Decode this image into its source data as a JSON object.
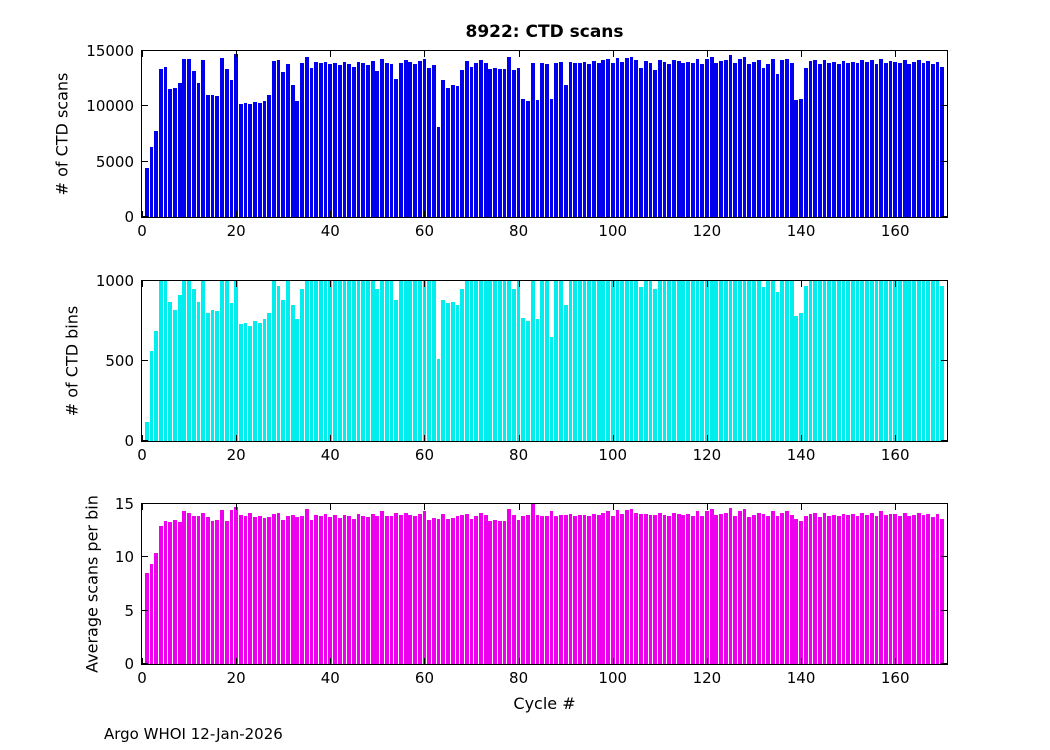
{
  "footer": "Argo WHOI 12-Jan-2026",
  "colors": {
    "scans": "#0000ee",
    "bins": "#00eeee",
    "avg": "#ee00ee"
  },
  "chart_data": [
    {
      "type": "bar",
      "title": "8922: CTD scans",
      "ylabel": "# of CTD scans",
      "xlabel": "",
      "color": "#0000ee",
      "ylim": [
        0,
        15000
      ],
      "yticks": [
        0,
        5000,
        10000,
        15000
      ],
      "xlim": [
        0,
        171
      ],
      "xticks": [
        0,
        20,
        40,
        60,
        80,
        100,
        120,
        140,
        160
      ],
      "x_start": 1,
      "values": [
        4400,
        6300,
        7800,
        13400,
        13600,
        11600,
        11700,
        12100,
        14300,
        14250,
        13200,
        12100,
        14200,
        11050,
        11000,
        10950,
        14400,
        13350,
        12400,
        14700,
        10250,
        10300,
        10200,
        10350,
        10300,
        10450,
        11000,
        14100,
        14150,
        13100,
        13850,
        11950,
        10500,
        13900,
        14500,
        13500,
        14000,
        13900,
        14050,
        13800,
        13950,
        13700,
        14000,
        13850,
        13600,
        14050,
        13900,
        13750,
        14100,
        13200,
        14300,
        13900,
        13850,
        12500,
        13950,
        14200,
        14000,
        13850,
        14100,
        14250,
        13500,
        13700,
        8100,
        12400,
        11700,
        11900,
        11850,
        13300,
        14100,
        13600,
        13900,
        14200,
        13950,
        13400,
        13500,
        13350,
        13400,
        14500,
        13300,
        13450,
        10700,
        10500,
        13950,
        10600,
        13900,
        13850,
        10700,
        13900,
        14000,
        11900,
        14050,
        13900,
        13950,
        14000,
        13850,
        14100,
        13950,
        14200,
        14300,
        13900,
        14350,
        14050,
        14400,
        14500,
        14200,
        13500,
        14100,
        13950,
        13300,
        14150,
        14000,
        13850,
        14200,
        14100,
        13950,
        14050,
        13900,
        14300,
        13850,
        14250,
        14500,
        13950,
        14100,
        14200,
        14600,
        13900,
        14300,
        14450,
        13800,
        14000,
        14200,
        13500,
        13850,
        14300,
        12900,
        14200,
        14250,
        13950,
        10600,
        10700,
        13500,
        14100,
        14150,
        13800,
        14200,
        13900,
        14000,
        13850,
        14100,
        13950,
        14050,
        13900,
        14150,
        14000,
        14200,
        13850,
        14300,
        13950,
        14100,
        14050,
        13900,
        14200,
        13850,
        14000,
        14150,
        13950,
        14100,
        13800,
        14050,
        13600
      ]
    },
    {
      "type": "bar",
      "title": "",
      "ylabel": "# of CTD bins",
      "xlabel": "",
      "color": "#00eeee",
      "ylim": [
        0,
        1000
      ],
      "yticks": [
        0,
        500,
        1000
      ],
      "xlim": [
        0,
        171
      ],
      "xticks": [
        0,
        20,
        40,
        60,
        80,
        100,
        120,
        140,
        160
      ],
      "x_start": 1,
      "values": [
        120,
        560,
        690,
        1000,
        1000,
        870,
        820,
        910,
        1000,
        1000,
        950,
        870,
        1000,
        800,
        820,
        810,
        1000,
        1000,
        860,
        1000,
        730,
        740,
        720,
        750,
        740,
        760,
        800,
        1000,
        970,
        880,
        1000,
        850,
        760,
        950,
        1000,
        1000,
        1000,
        1000,
        1000,
        1000,
        1000,
        1000,
        1000,
        1000,
        1000,
        1000,
        1000,
        1000,
        1000,
        950,
        1000,
        1000,
        1000,
        880,
        1000,
        1000,
        1000,
        1000,
        1000,
        1000,
        1000,
        1000,
        510,
        880,
        860,
        870,
        850,
        950,
        1000,
        1000,
        1000,
        1000,
        1000,
        1000,
        1000,
        1000,
        1000,
        1000,
        950,
        1000,
        770,
        750,
        1000,
        760,
        1000,
        1000,
        650,
        1000,
        1000,
        850,
        1000,
        1000,
        1000,
        1000,
        1000,
        1000,
        1000,
        1000,
        1000,
        1000,
        1000,
        1000,
        1000,
        1000,
        1000,
        960,
        1000,
        1000,
        950,
        1000,
        1000,
        1000,
        1000,
        1000,
        1000,
        1000,
        1000,
        1000,
        1000,
        1000,
        1000,
        1000,
        1000,
        1000,
        1000,
        1000,
        1000,
        1000,
        1000,
        1000,
        1000,
        960,
        1000,
        1000,
        930,
        1000,
        1000,
        1000,
        780,
        800,
        970,
        1000,
        1000,
        1000,
        1000,
        1000,
        1000,
        1000,
        1000,
        1000,
        1000,
        1000,
        1000,
        1000,
        1000,
        1000,
        1000,
        1000,
        1000,
        1000,
        1000,
        1000,
        1000,
        1000,
        1000,
        1000,
        1000,
        1000,
        1000,
        970
      ]
    },
    {
      "type": "bar",
      "title": "",
      "ylabel": "Average scans per bin",
      "xlabel": "Cycle #",
      "color": "#ee00ee",
      "ylim": [
        0,
        15
      ],
      "yticks": [
        0,
        5,
        10,
        15
      ],
      "xlim": [
        0,
        171
      ],
      "xticks": [
        0,
        20,
        40,
        60,
        80,
        100,
        120,
        140,
        160
      ],
      "x_start": 1,
      "values": [
        8.5,
        9.4,
        10.4,
        12.9,
        13.4,
        13.3,
        13.5,
        13.3,
        14.3,
        14.2,
        13.9,
        13.9,
        14.2,
        13.8,
        13.4,
        13.5,
        14.4,
        13.4,
        14.4,
        14.7,
        14.0,
        13.9,
        14.2,
        13.8,
        13.9,
        13.7,
        13.8,
        14.1,
        14.2,
        13.5,
        13.9,
        14.0,
        13.8,
        13.9,
        14.5,
        13.5,
        14.0,
        13.9,
        14.1,
        13.8,
        14.0,
        13.7,
        14.0,
        13.9,
        13.6,
        14.1,
        13.9,
        13.8,
        14.1,
        13.9,
        14.3,
        13.9,
        13.9,
        14.2,
        14.0,
        14.2,
        14.0,
        13.9,
        14.1,
        14.3,
        13.5,
        13.7,
        13.6,
        14.1,
        13.6,
        13.7,
        13.9,
        14.0,
        14.1,
        13.6,
        13.9,
        14.2,
        14.0,
        13.4,
        13.5,
        13.4,
        13.4,
        14.5,
        14.0,
        13.5,
        13.9,
        14.0,
        15.0,
        14.0,
        13.9,
        13.9,
        14.3,
        13.9,
        14.0,
        14.0,
        14.1,
        13.9,
        14.0,
        14.0,
        13.9,
        14.1,
        14.0,
        14.2,
        14.3,
        13.9,
        14.4,
        14.1,
        14.4,
        14.5,
        14.2,
        14.1,
        14.1,
        14.0,
        14.0,
        14.2,
        14.0,
        13.9,
        14.2,
        14.1,
        14.0,
        14.1,
        13.9,
        14.3,
        13.9,
        14.3,
        14.5,
        14.0,
        14.1,
        14.2,
        14.6,
        13.9,
        14.3,
        14.5,
        13.8,
        14.0,
        14.2,
        14.1,
        13.9,
        14.3,
        13.9,
        14.2,
        14.3,
        14.0,
        13.6,
        13.4,
        13.9,
        14.1,
        14.2,
        13.8,
        14.2,
        13.9,
        14.0,
        13.9,
        14.1,
        14.0,
        14.1,
        13.9,
        14.2,
        14.0,
        14.2,
        13.9,
        14.3,
        14.0,
        14.1,
        14.1,
        13.9,
        14.2,
        13.9,
        14.0,
        14.2,
        14.0,
        14.1,
        13.8,
        14.1,
        13.6
      ]
    }
  ]
}
